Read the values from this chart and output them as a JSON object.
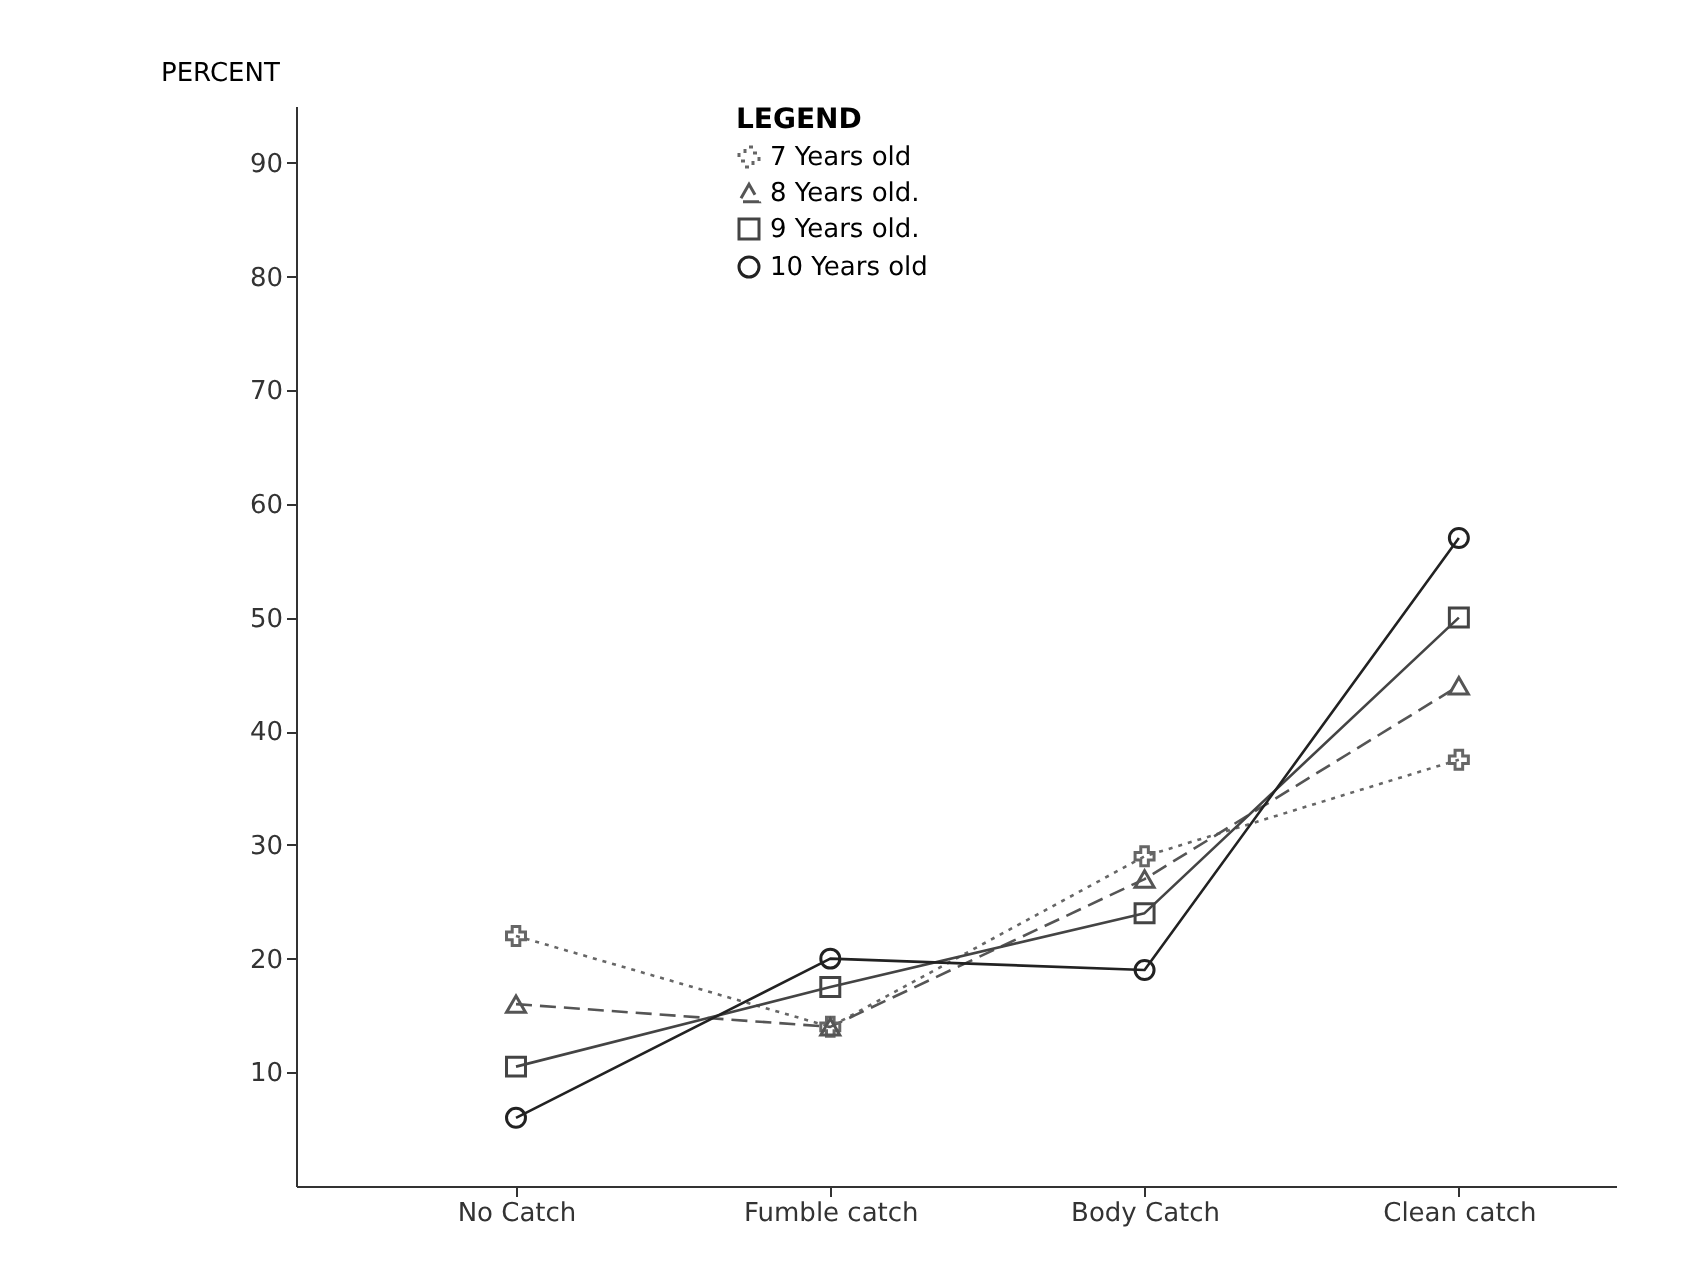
{
  "chart_data": {
    "type": "line",
    "ylabel": "PERCENT",
    "legend_title": "LEGEND",
    "categories": [
      "No Catch",
      "Fumble catch",
      "Body Catch",
      "Clean catch"
    ],
    "series": [
      {
        "name": "7 Years old",
        "color": "#666666",
        "marker": "cross",
        "line_style": "dotted",
        "values": [
          22,
          14,
          29,
          37.5
        ]
      },
      {
        "name": "8 Years old.",
        "color": "#555555",
        "marker": "triangle",
        "line_style": "dashed",
        "values": [
          16,
          14,
          27,
          44
        ]
      },
      {
        "name": "9 Years old.",
        "color": "#444444",
        "marker": "square",
        "line_style": "solid",
        "values": [
          10.5,
          17.5,
          24,
          50
        ]
      },
      {
        "name": "10 Years old",
        "color": "#222222",
        "marker": "circle",
        "line_style": "solid",
        "values": [
          6,
          20,
          19,
          57
        ]
      }
    ],
    "ylim": [
      0,
      95
    ],
    "yticks": [
      10,
      20,
      30,
      40,
      50,
      60,
      70,
      80,
      90
    ],
    "grid": false,
    "legend": "top"
  }
}
